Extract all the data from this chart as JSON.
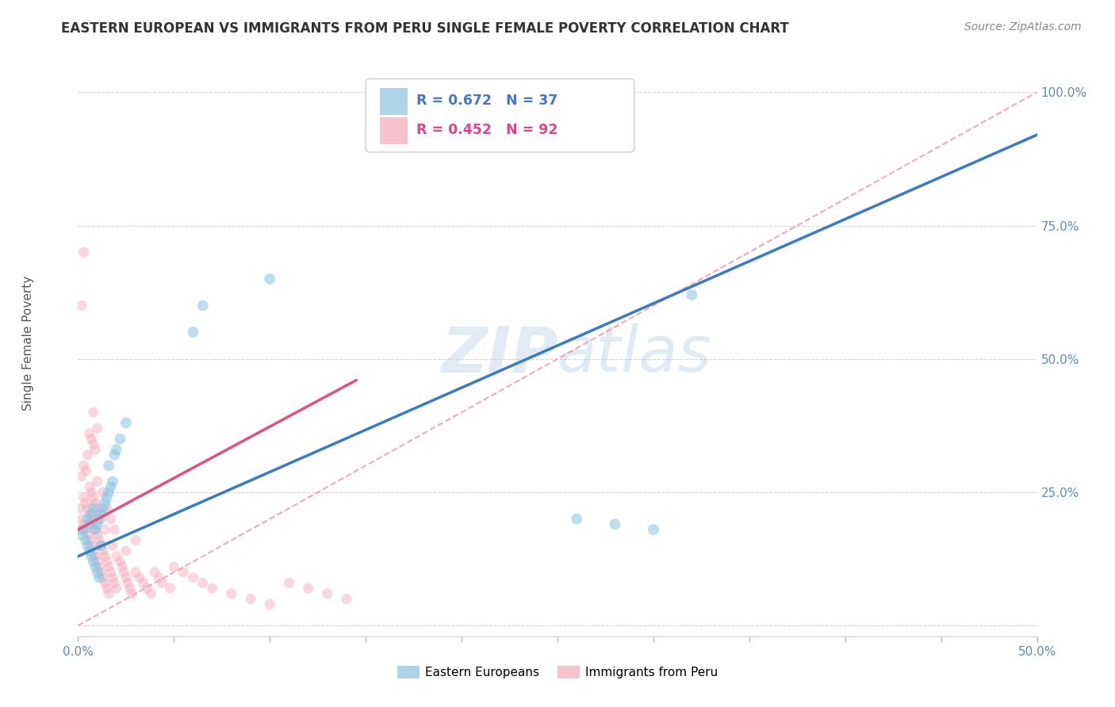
{
  "title": "EASTERN EUROPEAN VS IMMIGRANTS FROM PERU SINGLE FEMALE POVERTY CORRELATION CHART",
  "source": "Source: ZipAtlas.com",
  "ylabel": "Single Female Poverty",
  "xlim": [
    0.0,
    0.5
  ],
  "ylim": [
    -0.02,
    1.08
  ],
  "background_color": "#ffffff",
  "grid_color": "#cccccc",
  "blue_color": "#89c4e1",
  "pink_color": "#f4a7b9",
  "blue_line_color": "#3a7abf",
  "pink_line_color": "#e05080",
  "diag_line_color": "#f0a0b0",
  "legend_R_blue": "R = 0.672",
  "legend_N_blue": "N = 37",
  "legend_R_pink": "R = 0.452",
  "legend_N_pink": "N = 92",
  "blue_line_x0": 0.0,
  "blue_line_y0": 0.13,
  "blue_line_x1": 0.5,
  "blue_line_y1": 0.92,
  "pink_line_x0": 0.0,
  "pink_line_y0": 0.18,
  "pink_line_x1": 0.145,
  "pink_line_y1": 0.46,
  "blue_scatter_x": [
    0.002,
    0.003,
    0.004,
    0.005,
    0.005,
    0.006,
    0.006,
    0.007,
    0.007,
    0.008,
    0.008,
    0.009,
    0.009,
    0.01,
    0.01,
    0.011,
    0.011,
    0.012,
    0.012,
    0.013,
    0.014,
    0.015,
    0.016,
    0.016,
    0.017,
    0.018,
    0.019,
    0.02,
    0.022,
    0.025,
    0.06,
    0.065,
    0.1,
    0.32,
    0.3,
    0.28,
    0.26
  ],
  "blue_scatter_y": [
    0.17,
    0.18,
    0.16,
    0.2,
    0.15,
    0.19,
    0.14,
    0.21,
    0.13,
    0.22,
    0.12,
    0.18,
    0.11,
    0.19,
    0.1,
    0.2,
    0.09,
    0.21,
    0.15,
    0.22,
    0.23,
    0.24,
    0.25,
    0.3,
    0.26,
    0.27,
    0.32,
    0.33,
    0.35,
    0.38,
    0.55,
    0.6,
    0.65,
    0.62,
    0.18,
    0.19,
    0.2
  ],
  "pink_scatter_x": [
    0.001,
    0.001,
    0.002,
    0.002,
    0.003,
    0.003,
    0.003,
    0.004,
    0.004,
    0.004,
    0.005,
    0.005,
    0.005,
    0.006,
    0.006,
    0.006,
    0.006,
    0.007,
    0.007,
    0.007,
    0.007,
    0.008,
    0.008,
    0.008,
    0.008,
    0.008,
    0.009,
    0.009,
    0.009,
    0.009,
    0.01,
    0.01,
    0.01,
    0.01,
    0.01,
    0.011,
    0.011,
    0.011,
    0.012,
    0.012,
    0.012,
    0.013,
    0.013,
    0.013,
    0.014,
    0.014,
    0.014,
    0.015,
    0.015,
    0.015,
    0.016,
    0.016,
    0.017,
    0.017,
    0.018,
    0.018,
    0.019,
    0.019,
    0.02,
    0.02,
    0.022,
    0.023,
    0.024,
    0.025,
    0.025,
    0.026,
    0.027,
    0.028,
    0.03,
    0.03,
    0.032,
    0.034,
    0.036,
    0.038,
    0.04,
    0.042,
    0.044,
    0.048,
    0.05,
    0.055,
    0.06,
    0.065,
    0.07,
    0.08,
    0.09,
    0.1,
    0.11,
    0.12,
    0.13,
    0.14,
    0.002,
    0.003
  ],
  "pink_scatter_y": [
    0.18,
    0.22,
    0.2,
    0.28,
    0.19,
    0.24,
    0.3,
    0.18,
    0.23,
    0.29,
    0.17,
    0.22,
    0.32,
    0.16,
    0.21,
    0.26,
    0.36,
    0.15,
    0.2,
    0.25,
    0.35,
    0.14,
    0.19,
    0.24,
    0.34,
    0.4,
    0.13,
    0.18,
    0.23,
    0.33,
    0.12,
    0.17,
    0.22,
    0.27,
    0.37,
    0.11,
    0.16,
    0.21,
    0.1,
    0.15,
    0.2,
    0.09,
    0.14,
    0.25,
    0.08,
    0.13,
    0.18,
    0.07,
    0.12,
    0.22,
    0.06,
    0.11,
    0.1,
    0.2,
    0.09,
    0.15,
    0.08,
    0.18,
    0.07,
    0.13,
    0.12,
    0.11,
    0.1,
    0.09,
    0.14,
    0.08,
    0.07,
    0.06,
    0.1,
    0.16,
    0.09,
    0.08,
    0.07,
    0.06,
    0.1,
    0.09,
    0.08,
    0.07,
    0.11,
    0.1,
    0.09,
    0.08,
    0.07,
    0.06,
    0.05,
    0.04,
    0.08,
    0.07,
    0.06,
    0.05,
    0.6,
    0.7
  ],
  "blue_marker_size": 100,
  "pink_marker_size": 90,
  "blue_alpha": 0.55,
  "pink_alpha": 0.45,
  "ytick_positions": [
    0.0,
    0.25,
    0.5,
    0.75,
    1.0
  ],
  "ytick_labels": [
    "",
    "25.0%",
    "50.0%",
    "75.0%",
    "100.0%"
  ],
  "xtick_positions": [
    0.0,
    0.05,
    0.1,
    0.15,
    0.2,
    0.25,
    0.3,
    0.35,
    0.4,
    0.45,
    0.5
  ],
  "xtick_labels": [
    "0.0%",
    "",
    "",
    "",
    "",
    "",
    "",
    "",
    "",
    "",
    "50.0%"
  ],
  "tick_color": "#5b8db8",
  "title_fontsize": 12,
  "source_fontsize": 10
}
